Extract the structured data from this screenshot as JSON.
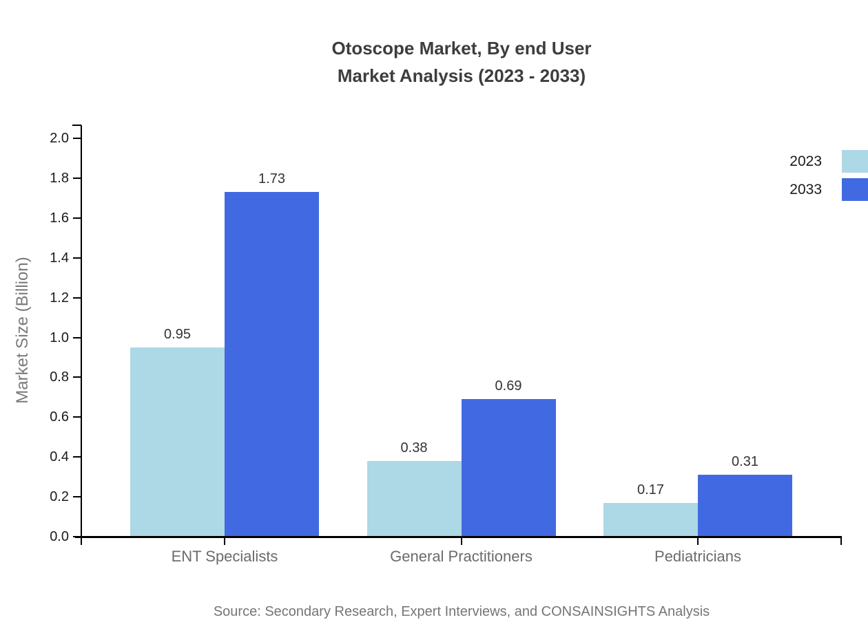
{
  "title": {
    "line1": "Otoscope Market, By end User",
    "line2": "Market Analysis (2023 - 2033)"
  },
  "source": "Source: Secondary Research, Expert Interviews, and CONSAINSIGHTS Analysis",
  "chart_data": {
    "type": "bar",
    "categories": [
      "ENT Specialists",
      "General Practitioners",
      "Pediatricians"
    ],
    "series": [
      {
        "name": "2023",
        "color": "#ADD8E6",
        "values": [
          0.95,
          0.38,
          0.17
        ]
      },
      {
        "name": "2033",
        "color": "#4169E1",
        "values": [
          1.73,
          0.69,
          0.31
        ]
      }
    ],
    "title": "Otoscope Market, By end User Market Analysis (2023 - 2033)",
    "xlabel": "",
    "ylabel": "Market Size (Billion)",
    "ylim": [
      0.0,
      2.0
    ],
    "ytick_step": 0.2,
    "grid": false,
    "legend_position": "top-right",
    "value_labels": true,
    "axis_color": "#000000",
    "value_label_color": "#333333",
    "category_label_color": "#6b6b6b"
  }
}
